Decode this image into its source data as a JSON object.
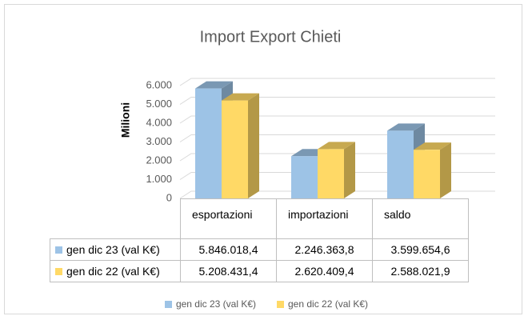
{
  "chart_data": {
    "type": "bar3d",
    "title": "Import Export Chieti",
    "y_label": "Milioni",
    "categories": [
      "esportazioni",
      "importazioni",
      "saldo"
    ],
    "series": [
      {
        "name": "gen dic 23 (val K€)",
        "color": "#9dc3e6",
        "values": [
          5846.0184,
          2246.3638,
          3599.6546
        ],
        "value_labels": [
          "5.846.018,4",
          "2.246.363,8",
          "3.599.654,6"
        ]
      },
      {
        "name": "gen dic 22 (val K€)",
        "color": "#ffd966",
        "values": [
          5208.4314,
          2620.4094,
          2588.0219
        ],
        "value_labels": [
          "5.208.431,4",
          "2.620.409,4",
          "2.588.021,9"
        ]
      }
    ],
    "ylim": [
      0,
      6000
    ],
    "yticks": [
      0,
      {
        "value": 1000,
        "label": "1.000"
      },
      {
        "value": 2000,
        "label": "2.000"
      },
      {
        "value": 3000,
        "label": "3.000"
      },
      {
        "value": 4000,
        "label": "4.000"
      },
      {
        "value": 5000,
        "label": "5.000"
      },
      {
        "value": 6000,
        "label": "6.000"
      }
    ],
    "grid": true,
    "legend": "bottom"
  }
}
